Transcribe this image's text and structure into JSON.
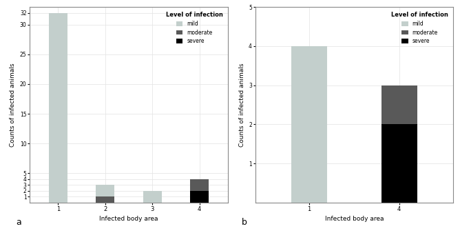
{
  "chart_data": [
    {
      "type": "bar",
      "stacked": true,
      "grid": true,
      "legend": "upper right",
      "legend_title": "Level of infection",
      "panel_label": "a",
      "xlabel": "Infected body area",
      "ylabel": "Counts of infected animals",
      "categories": [
        "1",
        "2",
        "3",
        "4"
      ],
      "series": [
        {
          "name": "mild",
          "color": "#c3cfcc",
          "values": [
            32,
            2,
            2,
            0
          ]
        },
        {
          "name": "moderate",
          "color": "#595959",
          "values": [
            0,
            1,
            0,
            2
          ]
        },
        {
          "name": "severe",
          "color": "#000000",
          "values": [
            0,
            0,
            0,
            2
          ]
        }
      ],
      "ylim": [
        0,
        33
      ],
      "yticks": [
        1,
        2,
        3,
        4,
        5,
        10,
        15,
        20,
        25,
        30,
        32
      ]
    },
    {
      "type": "bar",
      "stacked": true,
      "grid": true,
      "legend": "upper right",
      "legend_title": "Level of infection",
      "panel_label": "b",
      "xlabel": "Infected body area",
      "ylabel": "Counts of infected animals",
      "categories": [
        "1",
        "4"
      ],
      "series": [
        {
          "name": "mild",
          "color": "#c3cfcc",
          "values": [
            4,
            0
          ]
        },
        {
          "name": "moderate",
          "color": "#595959",
          "values": [
            0,
            1
          ]
        },
        {
          "name": "severe",
          "color": "#000000",
          "values": [
            0,
            2
          ]
        }
      ],
      "ylim": [
        0,
        5
      ],
      "yticks": [
        1,
        2,
        3,
        4,
        5
      ]
    }
  ]
}
